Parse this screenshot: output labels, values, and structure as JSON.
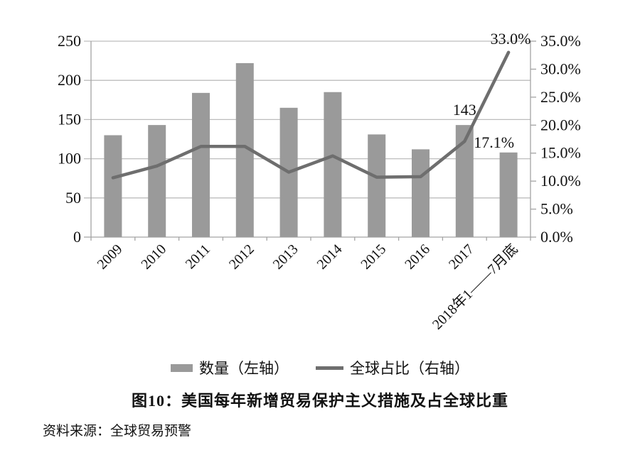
{
  "figure": {
    "title": "图10：美国每年新增贸易保护主义措施及占全球比重",
    "source": "资料来源：全球贸易预警"
  },
  "legend": [
    {
      "marker": "bar-swatch",
      "label": "数量（左轴）"
    },
    {
      "marker": "line-swatch",
      "label": "全球占比（右轴）"
    }
  ],
  "colors": {
    "bar": "#9a9a9a",
    "line": "#6e6e6e",
    "grid": "#bdbdbd",
    "axis": "#a3a3a3",
    "text": "#111111",
    "background": "#ffffff"
  },
  "chart_data": {
    "type": "bar+line combo",
    "title": "图10：美国每年新增贸易保护主义措施及占全球比重",
    "categories": [
      "2009",
      "2010",
      "2011",
      "2012",
      "2013",
      "2014",
      "2015",
      "2016",
      "2017",
      "2018年1——7月底"
    ],
    "series": [
      {
        "name": "数量（左轴）",
        "type": "bar",
        "axis": "left",
        "values": [
          130,
          143,
          184,
          222,
          165,
          185,
          131,
          112,
          143,
          108
        ]
      },
      {
        "name": "全球占比（右轴）",
        "type": "line",
        "axis": "right",
        "unit": "%",
        "values": [
          10.6,
          12.7,
          16.2,
          16.2,
          11.6,
          14.5,
          10.7,
          10.8,
          17.1,
          33.0
        ]
      }
    ],
    "left_axis": {
      "min": 0,
      "max": 250,
      "step": 50,
      "tick_labels": [
        "0",
        "50",
        "100",
        "150",
        "200",
        "250"
      ]
    },
    "right_axis": {
      "min": 0,
      "max": 35,
      "step": 5,
      "tick_labels": [
        "0.0%",
        "5.0%",
        "10.0%",
        "15.0%",
        "20.0%",
        "25.0%",
        "30.0%",
        "35.0%"
      ]
    },
    "annotations": [
      {
        "text": "143",
        "category": "2017",
        "series": "bar",
        "placement": "above-bar"
      },
      {
        "text": "17.1%",
        "category": "2017",
        "series": "line",
        "placement": "right-of-point"
      },
      {
        "text": "33.0%",
        "category": "2018年1——7月底",
        "series": "line",
        "placement": "above-point"
      }
    ],
    "grid": "horizontal",
    "legend_position": "bottom",
    "source": "资料来源：全球贸易预警"
  }
}
